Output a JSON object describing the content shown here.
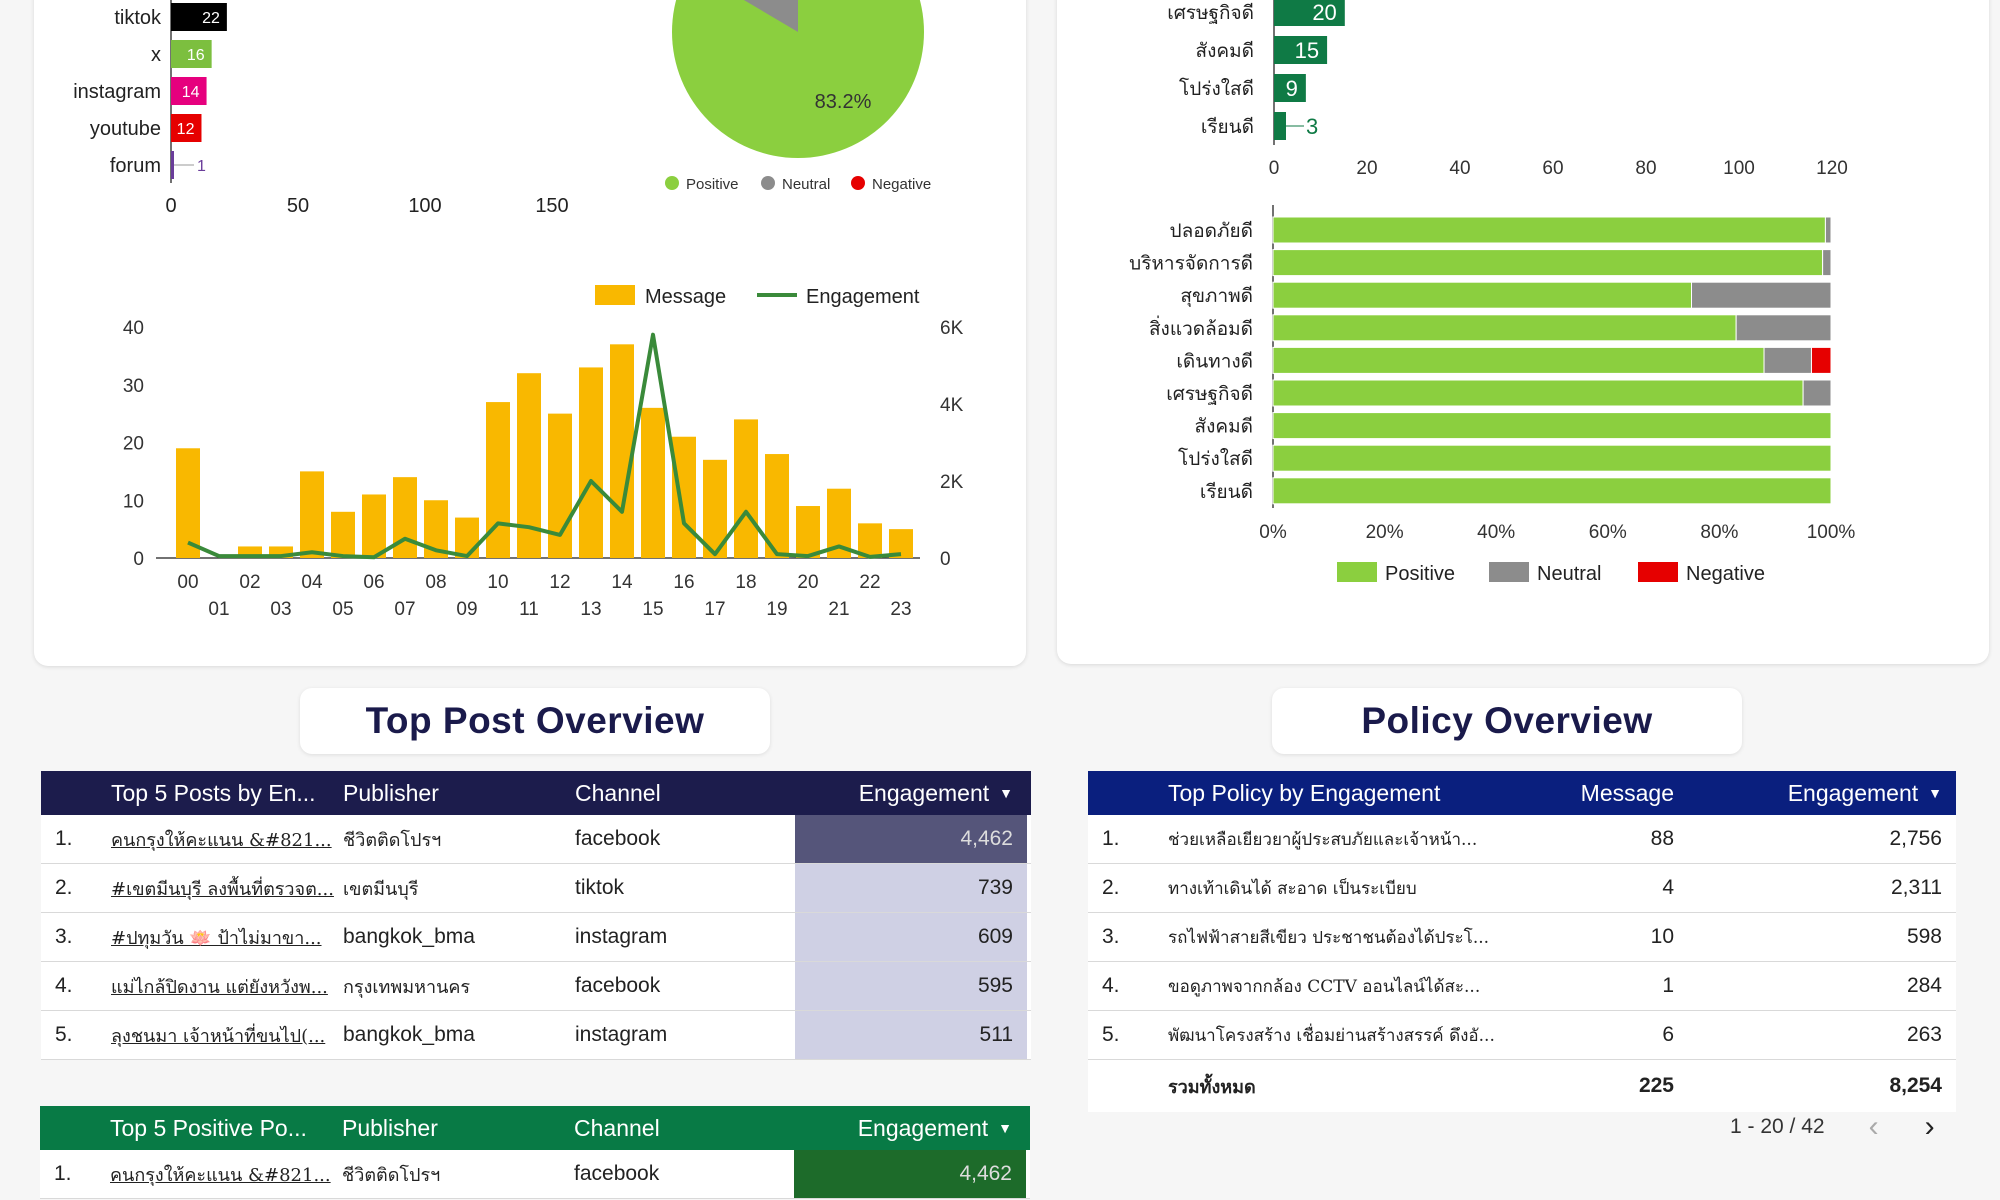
{
  "channel_chart": {
    "categories": [
      "tiktok",
      "x",
      "instagram",
      "youtube",
      "forum"
    ],
    "values": [
      22,
      16,
      14,
      12,
      1
    ],
    "colors": [
      "#000000",
      "#7cbf3f",
      "#e6007e",
      "#e60000",
      "#6a3d9a"
    ],
    "xticks": [
      "0",
      "50",
      "100",
      "150"
    ],
    "xlim": [
      0,
      180
    ]
  },
  "sentiment_pie": {
    "label": "83.2%",
    "legend": [
      {
        "name": "Positive",
        "color": "#8bcf3f"
      },
      {
        "name": "Neutral",
        "color": "#8c8c8c"
      },
      {
        "name": "Negative",
        "color": "#e60000"
      }
    ]
  },
  "hourly_chart": {
    "legend_message": "Message",
    "legend_engagement": "Engagement",
    "message_color": "#f9b800",
    "engagement_color": "#3a8a3a",
    "yticks_left": [
      "0",
      "10",
      "20",
      "30",
      "40"
    ],
    "yticks_right": [
      "0",
      "2K",
      "4K",
      "6K"
    ],
    "hours_top": [
      "00",
      "02",
      "04",
      "06",
      "08",
      "10",
      "12",
      "14",
      "16",
      "18",
      "20",
      "22"
    ],
    "hours_bottom": [
      "01",
      "03",
      "05",
      "07",
      "09",
      "11",
      "13",
      "15",
      "17",
      "19",
      "21",
      "23"
    ]
  },
  "chart_data": [
    {
      "type": "bar",
      "title": "",
      "categories": [
        "tiktok",
        "x",
        "instagram",
        "youtube",
        "forum"
      ],
      "values": [
        22,
        16,
        14,
        12,
        1
      ]
    },
    {
      "type": "bar",
      "title": "",
      "categories": [
        "00",
        "01",
        "02",
        "03",
        "04",
        "05",
        "06",
        "07",
        "08",
        "09",
        "10",
        "11",
        "12",
        "13",
        "14",
        "15",
        "16",
        "17",
        "18",
        "19",
        "20",
        "21",
        "22",
        "23"
      ],
      "series": [
        {
          "name": "Message",
          "axis": "left",
          "values": [
            19,
            0,
            2,
            2,
            15,
            8,
            11,
            14,
            10,
            7,
            27,
            32,
            25,
            33,
            37,
            26,
            21,
            17,
            24,
            18,
            9,
            12,
            6,
            5
          ]
        },
        {
          "name": "Engagement",
          "axis": "right",
          "values": [
            400,
            50,
            50,
            50,
            150,
            50,
            20,
            500,
            200,
            50,
            900,
            800,
            600,
            2000,
            1200,
            5800,
            900,
            100,
            1200,
            100,
            50,
            300,
            30,
            100
          ]
        }
      ],
      "ylim_left": [
        0,
        40
      ],
      "ylim_right": [
        0,
        6000
      ]
    },
    {
      "type": "bar",
      "title": "",
      "categories": [
        "เศรษฐกิจดี",
        "สังคมดี",
        "โปร่งใสดี",
        "เรียนดี"
      ],
      "values": [
        20,
        15,
        9,
        3
      ],
      "xlim": [
        0,
        120
      ]
    },
    {
      "type": "bar",
      "title": "",
      "stacked": "percent",
      "categories": [
        "ปลอดภัยดี",
        "บริหารจัดการดี",
        "สุขภาพดี",
        "สิ่งแวดล้อมดี",
        "เดินทางดี",
        "เศรษฐกิจดี",
        "สังคมดี",
        "โปร่งใสดี",
        "เรียนดี"
      ],
      "series": [
        {
          "name": "Positive",
          "values": [
            99,
            98.5,
            75,
            83,
            88,
            95,
            100,
            100,
            100
          ]
        },
        {
          "name": "Neutral",
          "values": [
            1,
            1.5,
            25,
            17,
            8.5,
            5,
            0,
            0,
            0
          ]
        },
        {
          "name": "Negative",
          "values": [
            0,
            0,
            0,
            0,
            3.5,
            0,
            0,
            0,
            0
          ]
        }
      ]
    }
  ],
  "policy_bar_chart": {
    "categories": [
      "เศรษฐกิจดี",
      "สังคมดี",
      "โปร่งใสดี",
      "เรียนดี"
    ],
    "values": [
      20,
      15,
      9,
      3
    ],
    "xticks": [
      "0",
      "20",
      "40",
      "60",
      "80",
      "100",
      "120"
    ],
    "color": "#0f7a45"
  },
  "policy_stacked_chart": {
    "categories": [
      "ปลอดภัยดี",
      "บริหารจัดการดี",
      "สุขภาพดี",
      "สิ่งแวดล้อมดี",
      "เดินทางดี",
      "เศรษฐกิจดี",
      "สังคมดี",
      "โปร่งใสดี",
      "เรียนดี"
    ],
    "xticks": [
      "0%",
      "20%",
      "40%",
      "60%",
      "80%",
      "100%"
    ],
    "legend": [
      {
        "name": "Positive",
        "color": "#8bcf3f"
      },
      {
        "name": "Neutral",
        "color": "#8c8c8c"
      },
      {
        "name": "Negative",
        "color": "#e60000"
      }
    ]
  },
  "top_post_title": "Top Post Overview",
  "policy_title": "Policy Overview",
  "top_posts": {
    "header_color": "#1c1c4c",
    "headers": {
      "title": "Top 5 Posts by En...",
      "publisher": "Publisher",
      "channel": "Channel",
      "engagement": "Engagement"
    },
    "rows": [
      {
        "idx": "1.",
        "title": "คนกรุงให้คะแนน &#821...",
        "publisher": "ชีวิตติดโปรฯ",
        "channel": "facebook",
        "engagement": "4,462"
      },
      {
        "idx": "2.",
        "title": "#เขตมีนบุรี ลงพื้นที่ตรวจต...",
        "publisher": "เขตมีนบุรี",
        "channel": "tiktok",
        "engagement": "739"
      },
      {
        "idx": "3.",
        "title": "#ปทุมวัน 🪷 ป้าไม่มาขา...",
        "publisher": "bangkok_bma",
        "channel": "instagram",
        "engagement": "609"
      },
      {
        "idx": "4.",
        "title": "แม่ไกล้ปิดงาน แต่ยังหวังพ...",
        "publisher": "กรุงเทพมหานคร",
        "channel": "facebook",
        "engagement": "595"
      },
      {
        "idx": "5.",
        "title": "ลุงชนมา เจ้าหน้าที่ขนไป(...",
        "publisher": "bangkok_bma",
        "channel": "instagram",
        "engagement": "511"
      }
    ],
    "heat": [
      "#55557a",
      "#cfd0e4",
      "#cfd0e4",
      "#cfd0e4",
      "#cfd0e4"
    ]
  },
  "top_positive": {
    "header_color": "#087a45",
    "headers": {
      "title": "Top 5 Positive Po...",
      "publisher": "Publisher",
      "channel": "Channel",
      "engagement": "Engagement"
    },
    "rows": [
      {
        "idx": "1.",
        "title": "คนกรุงให้คะแนน &#821...",
        "publisher": "ชีวิตติดโปรฯ",
        "channel": "facebook",
        "engagement": "4,462"
      }
    ]
  },
  "policy_table": {
    "header_color": "#0a1f7e",
    "headers": {
      "title": "Top Policy by Engagement",
      "message": "Message",
      "engagement": "Engagement"
    },
    "rows": [
      {
        "idx": "1.",
        "title": "ช่วยเหลือเยียวยาผู้ประสบภัยและเจ้าหน้า...",
        "message": "88",
        "engagement": "2,756"
      },
      {
        "idx": "2.",
        "title": "ทางเท้าเดินได้ สะอาด เป็นระเบียบ",
        "message": "4",
        "engagement": "2,311"
      },
      {
        "idx": "3.",
        "title": "รถไฟฟ้าสายสีเขียว ประชาชนต้องได้ประโ...",
        "message": "10",
        "engagement": "598"
      },
      {
        "idx": "4.",
        "title": "ขอดูภาพจากกล้อง CCTV ออนไลน์ได้สะ...",
        "message": "1",
        "engagement": "284"
      },
      {
        "idx": "5.",
        "title": "พัฒนาโครงสร้าง เชื่อมย่านสร้างสรรค์ ดึงอั...",
        "message": "6",
        "engagement": "263"
      }
    ],
    "total_label": "รวมทั้งหมด",
    "total_message": "225",
    "total_engagement": "8,254",
    "pagination": "1 - 20 / 42"
  }
}
